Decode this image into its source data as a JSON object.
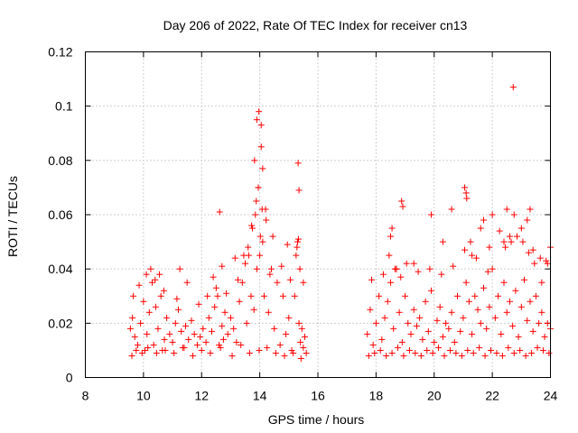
{
  "chart_data": {
    "type": "scatter",
    "title": "Day 206 of 2022, Rate Of TEC Index for receiver cn13",
    "xlabel": "GPS time / hours",
    "ylabel": "ROTI / TECUs",
    "xlim": [
      8,
      24
    ],
    "ylim": [
      0,
      0.12
    ],
    "x_ticks": [
      8,
      10,
      12,
      14,
      16,
      18,
      20,
      22,
      24
    ],
    "y_ticks": [
      0,
      0.02,
      0.04,
      0.06,
      0.08,
      0.1,
      0.12
    ],
    "x_tick_labels": [
      "8",
      "10",
      "12",
      "14",
      "16",
      "18",
      "20",
      "22",
      "24"
    ],
    "y_tick_labels": [
      "0",
      "0.02",
      "0.04",
      "0.06",
      "0.08",
      "0.1",
      "0.12"
    ],
    "grid": true,
    "marker": "+",
    "color": "#ff0000",
    "series": [
      {
        "name": "ROTI",
        "x": [
          9.55,
          9.62,
          9.7,
          9.8,
          9.9,
          10.0,
          10.05,
          10.12,
          10.2,
          10.3,
          10.35,
          10.42,
          10.5,
          10.6,
          10.65,
          10.72,
          10.8,
          10.9,
          11.0,
          11.1,
          11.2,
          11.3,
          11.35,
          11.45,
          11.55,
          11.65,
          11.75,
          11.85,
          11.95,
          12.05,
          12.15,
          12.25,
          12.35,
          12.45,
          12.55,
          12.6,
          12.7,
          12.75,
          12.8,
          12.9,
          13.0,
          13.1,
          13.2,
          13.3,
          13.4,
          13.5,
          13.55,
          13.6,
          13.7,
          13.75,
          13.8,
          13.85,
          13.9,
          13.95,
          14.0,
          14.05,
          14.1,
          14.15,
          14.2,
          14.3,
          14.4,
          14.5,
          14.6,
          14.7,
          14.8,
          14.9,
          15.0,
          15.1,
          15.2,
          15.25,
          15.3,
          15.35,
          15.4,
          15.45,
          15.5,
          15.55,
          15.6,
          9.6,
          9.75,
          9.95,
          10.15,
          10.45,
          10.75,
          11.05,
          11.4,
          11.7,
          12.0,
          12.3,
          12.65,
          13.05,
          13.35,
          13.65,
          13.98,
          14.25,
          14.55,
          14.85,
          15.15,
          15.42,
          9.65,
          9.85,
          10.1,
          10.4,
          10.7,
          11.15,
          11.5,
          11.9,
          12.2,
          12.5,
          12.85,
          13.25,
          13.62,
          14.02,
          14.35,
          14.75,
          15.05,
          15.38,
          15.5,
          10.25,
          10.55,
          11.25,
          12.4,
          12.7,
          13.15,
          13.45,
          13.72,
          13.88,
          13.95,
          14.08,
          14.22,
          14.45,
          14.95,
          15.28,
          15.33,
          12.62,
          13.82,
          13.9,
          13.97,
          14.05,
          14.1,
          15.32,
          15.35,
          17.7,
          17.8,
          17.9,
          18.0,
          18.1,
          18.2,
          18.3,
          18.4,
          18.5,
          18.6,
          18.7,
          18.8,
          18.9,
          19.0,
          19.1,
          19.2,
          19.3,
          19.4,
          19.5,
          19.6,
          19.7,
          19.8,
          19.9,
          20.0,
          20.1,
          20.2,
          20.3,
          20.4,
          20.5,
          20.6,
          20.7,
          20.8,
          20.9,
          21.0,
          21.1,
          21.2,
          21.3,
          21.4,
          21.5,
          21.6,
          21.7,
          21.8,
          21.9,
          22.0,
          22.1,
          22.2,
          22.3,
          22.4,
          22.5,
          22.6,
          22.7,
          22.8,
          22.9,
          23.0,
          23.1,
          23.2,
          23.3,
          23.4,
          23.5,
          23.6,
          23.7,
          23.8,
          23.9,
          24.0,
          17.75,
          17.95,
          18.15,
          18.35,
          18.55,
          18.75,
          18.95,
          19.15,
          19.35,
          19.55,
          19.75,
          19.95,
          20.15,
          20.35,
          20.55,
          20.75,
          20.95,
          21.15,
          21.35,
          21.55,
          21.75,
          21.95,
          22.15,
          22.35,
          22.55,
          22.75,
          22.95,
          23.15,
          23.35,
          23.55,
          23.75,
          23.95,
          17.85,
          18.25,
          18.45,
          18.65,
          18.85,
          19.05,
          19.45,
          19.85,
          20.25,
          20.65,
          21.05,
          21.25,
          21.45,
          21.85,
          22.25,
          22.45,
          22.65,
          22.85,
          23.05,
          23.25,
          23.45,
          23.65,
          23.85,
          18.5,
          18.55,
          18.88,
          18.92,
          19.9,
          20.6,
          21.05,
          21.1,
          21.12,
          21.6,
          21.7,
          22.0,
          22.5,
          22.6,
          22.75,
          23.0,
          23.2,
          23.3,
          23.9,
          24.0,
          22.72,
          18.7,
          19.3,
          20.3,
          21.3,
          21.9,
          22.4,
          23.4,
          23.7
        ],
        "y": [
          0.018,
          0.022,
          0.015,
          0.012,
          0.02,
          0.028,
          0.01,
          0.016,
          0.024,
          0.035,
          0.012,
          0.026,
          0.018,
          0.03,
          0.01,
          0.014,
          0.022,
          0.016,
          0.013,
          0.02,
          0.025,
          0.017,
          0.011,
          0.019,
          0.014,
          0.021,
          0.016,
          0.012,
          0.015,
          0.018,
          0.013,
          0.022,
          0.017,
          0.026,
          0.03,
          0.012,
          0.019,
          0.014,
          0.024,
          0.016,
          0.022,
          0.018,
          0.013,
          0.028,
          0.035,
          0.042,
          0.02,
          0.048,
          0.03,
          0.055,
          0.025,
          0.06,
          0.04,
          0.07,
          0.045,
          0.085,
          0.05,
          0.03,
          0.062,
          0.024,
          0.04,
          0.018,
          0.035,
          0.012,
          0.03,
          0.016,
          0.022,
          0.01,
          0.03,
          0.045,
          0.05,
          0.02,
          0.013,
          0.018,
          0.011,
          0.015,
          0.009,
          0.008,
          0.01,
          0.009,
          0.011,
          0.009,
          0.01,
          0.009,
          0.011,
          0.008,
          0.01,
          0.009,
          0.011,
          0.008,
          0.012,
          0.009,
          0.01,
          0.011,
          0.009,
          0.008,
          0.009,
          0.007,
          0.03,
          0.034,
          0.038,
          0.036,
          0.032,
          0.029,
          0.035,
          0.027,
          0.03,
          0.033,
          0.031,
          0.036,
          0.045,
          0.052,
          0.038,
          0.041,
          0.036,
          0.04,
          0.035,
          0.04,
          0.038,
          0.04,
          0.037,
          0.041,
          0.044,
          0.045,
          0.056,
          0.065,
          0.07,
          0.062,
          0.058,
          0.052,
          0.049,
          0.048,
          0.051,
          0.061,
          0.08,
          0.095,
          0.098,
          0.093,
          0.077,
          0.079,
          0.069,
          0.016,
          0.025,
          0.012,
          0.02,
          0.03,
          0.014,
          0.022,
          0.028,
          0.035,
          0.018,
          0.04,
          0.024,
          0.013,
          0.03,
          0.02,
          0.016,
          0.025,
          0.019,
          0.022,
          0.014,
          0.028,
          0.017,
          0.032,
          0.013,
          0.021,
          0.026,
          0.015,
          0.02,
          0.018,
          0.024,
          0.013,
          0.03,
          0.017,
          0.022,
          0.035,
          0.028,
          0.016,
          0.03,
          0.025,
          0.02,
          0.033,
          0.018,
          0.026,
          0.04,
          0.022,
          0.03,
          0.016,
          0.035,
          0.024,
          0.028,
          0.019,
          0.032,
          0.015,
          0.026,
          0.036,
          0.021,
          0.028,
          0.017,
          0.03,
          0.02,
          0.024,
          0.015,
          0.02,
          0.018,
          0.008,
          0.009,
          0.01,
          0.008,
          0.009,
          0.011,
          0.008,
          0.01,
          0.009,
          0.008,
          0.01,
          0.009,
          0.011,
          0.008,
          0.01,
          0.009,
          0.008,
          0.01,
          0.009,
          0.011,
          0.008,
          0.01,
          0.009,
          0.008,
          0.011,
          0.009,
          0.01,
          0.008,
          0.009,
          0.011,
          0.01,
          0.009,
          0.036,
          0.038,
          0.045,
          0.04,
          0.037,
          0.042,
          0.039,
          0.04,
          0.038,
          0.041,
          0.047,
          0.05,
          0.044,
          0.039,
          0.054,
          0.048,
          0.05,
          0.052,
          0.05,
          0.046,
          0.042,
          0.044,
          0.043,
          0.052,
          0.055,
          0.065,
          0.063,
          0.06,
          0.062,
          0.07,
          0.068,
          0.066,
          0.055,
          0.058,
          0.06,
          0.062,
          0.052,
          0.06,
          0.055,
          0.058,
          0.062,
          0.042,
          0.048,
          0.107,
          0.04,
          0.042,
          0.05,
          0.045,
          0.048,
          0.05,
          0.047,
          0.035
        ]
      }
    ]
  }
}
